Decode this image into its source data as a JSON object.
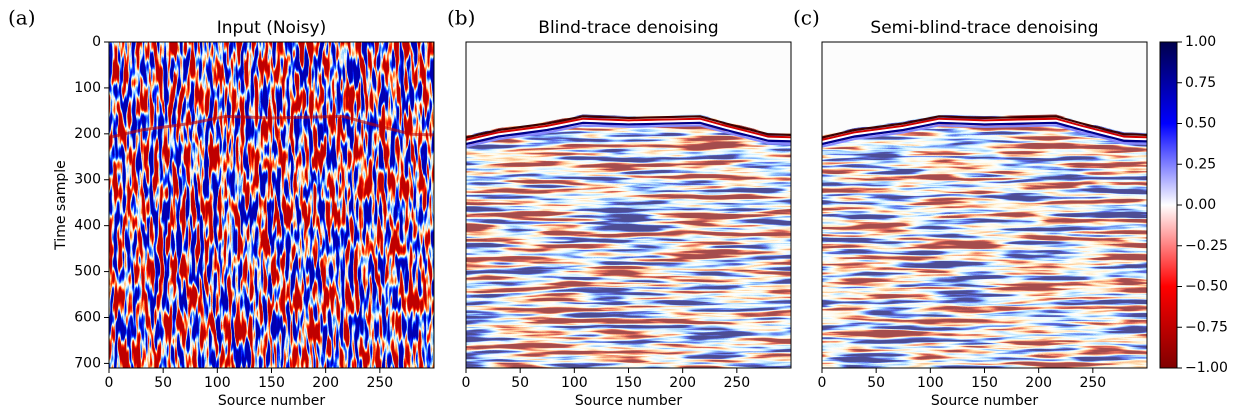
{
  "chart_data": [
    {
      "type": "heatmap",
      "panel_label": "(a)",
      "title": "Input (Noisy)",
      "x_label": "Source number",
      "y_label": "Time sample",
      "xlim": [
        0,
        300
      ],
      "xticks": [
        0,
        50,
        100,
        150,
        200,
        250
      ],
      "ylim": [
        710,
        0
      ],
      "yticks": [
        0,
        100,
        200,
        300,
        400,
        500,
        600,
        700
      ]
    },
    {
      "type": "heatmap",
      "panel_label": "(b)",
      "title": "Blind-trace denoising",
      "x_label": "Source number",
      "xlim": [
        0,
        300
      ],
      "xticks": [
        0,
        50,
        100,
        150,
        200,
        250
      ],
      "ylim": [
        710,
        0
      ]
    },
    {
      "type": "heatmap",
      "panel_label": "(c)",
      "title": "Semi-blind-trace denoising",
      "x_label": "Source number",
      "xlim": [
        0,
        300
      ],
      "xticks": [
        0,
        50,
        100,
        150,
        200,
        250
      ],
      "ylim": [
        710,
        0
      ],
      "colorbar": {
        "lim": [
          -1,
          1
        ],
        "ticks": [
          {
            "value": 1,
            "label": "1.00"
          },
          {
            "value": 0.75,
            "label": "0.75"
          },
          {
            "value": 0.5,
            "label": "0.50"
          },
          {
            "value": 0.25,
            "label": "0.25"
          },
          {
            "value": 0,
            "label": "0.00"
          },
          {
            "value": -0.25,
            "label": "−0.25"
          },
          {
            "value": -0.5,
            "label": "−0.50"
          },
          {
            "value": -0.75,
            "label": "−0.75"
          },
          {
            "value": -1,
            "label": "−1.00"
          }
        ],
        "colors": [
          "#800000",
          "#ff0000",
          "#ffffff",
          "#0000ff",
          "#00004c"
        ]
      }
    }
  ]
}
